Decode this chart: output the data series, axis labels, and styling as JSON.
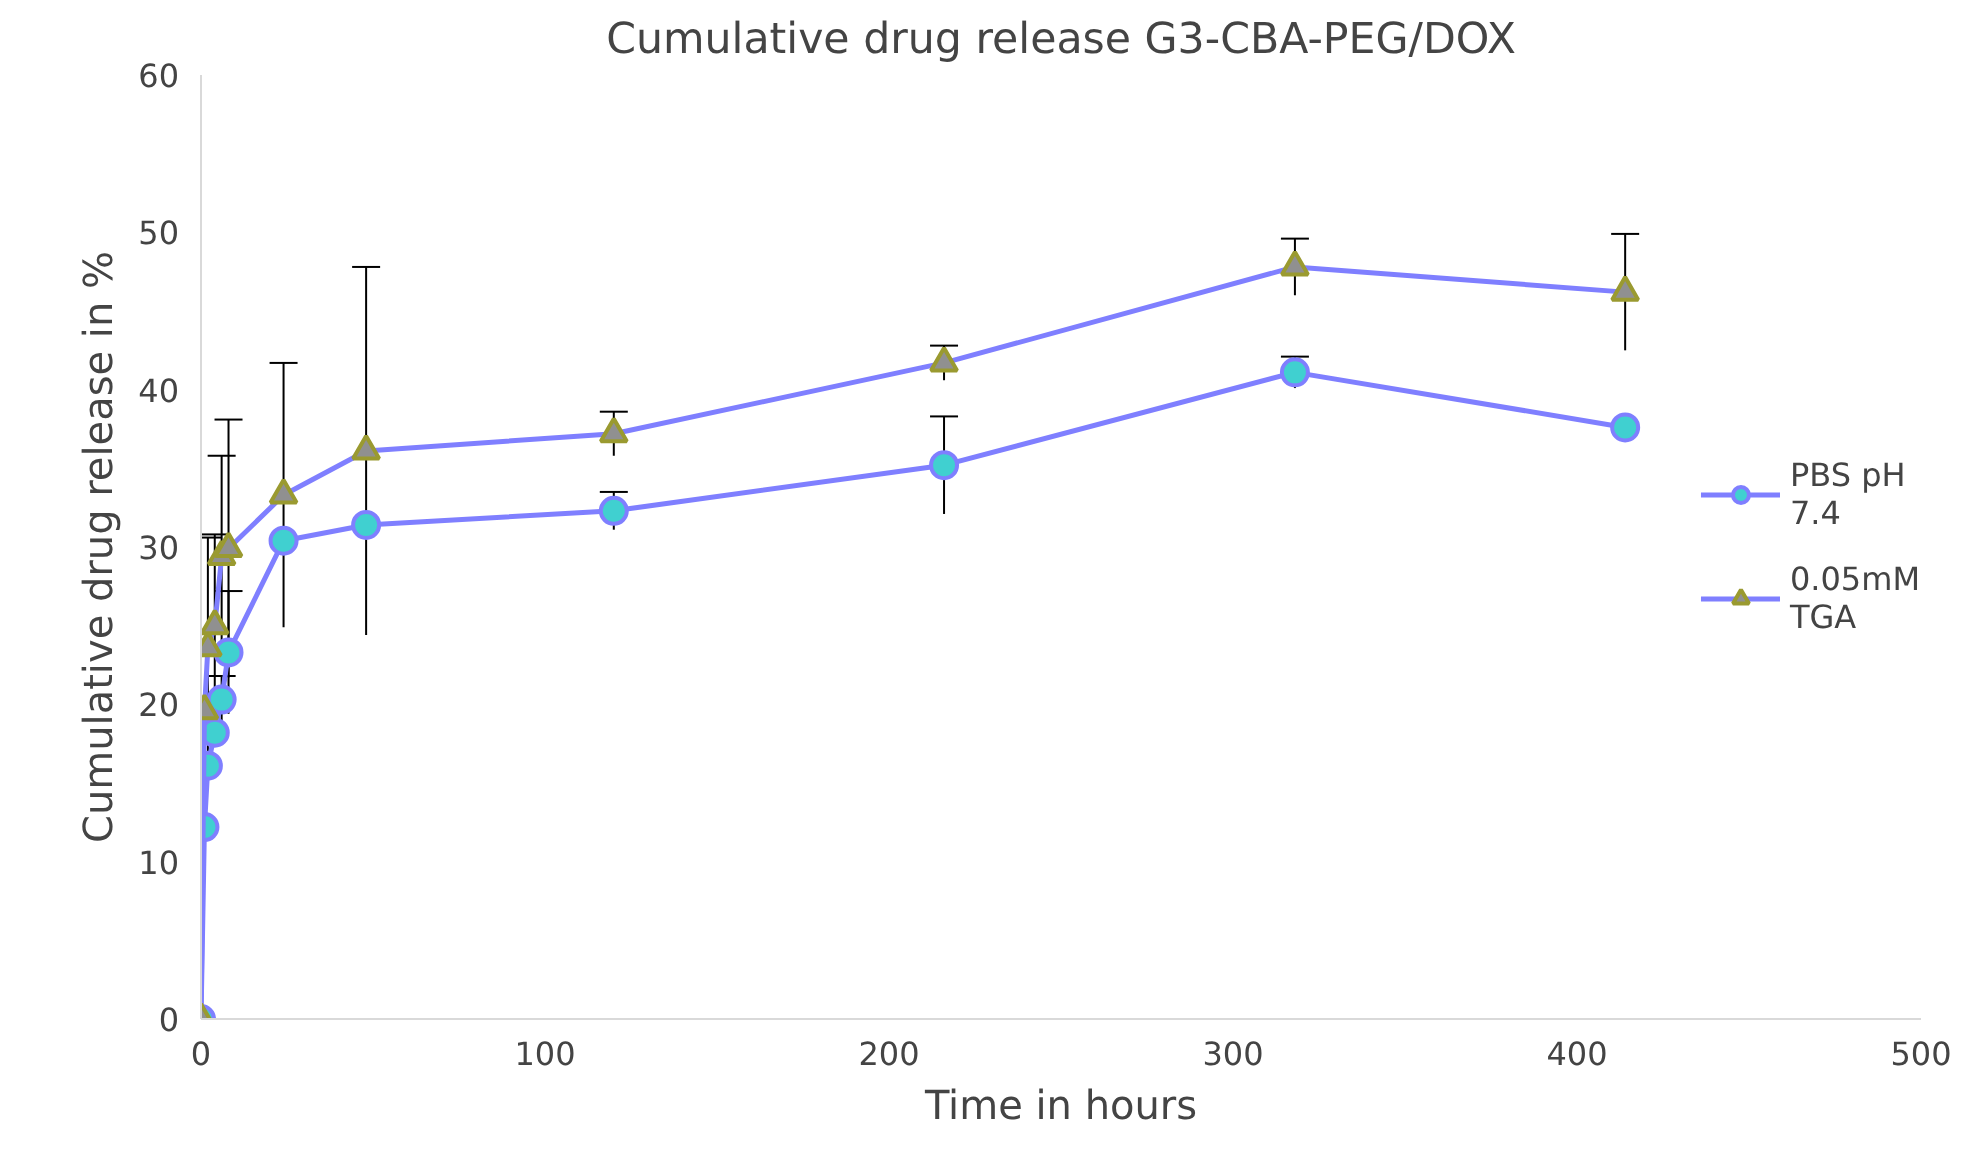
{
  "chart_data": {
    "type": "line",
    "title": "Cumulative drug release G3-CBA-PEG/DOX",
    "xlabel": "Time in hours",
    "ylabel": "Cumulative drug release in %",
    "x": [
      0,
      1,
      2,
      4,
      6,
      8,
      24,
      48,
      120,
      216,
      318,
      414
    ],
    "series": [
      {
        "name": "PBS pH 7.4",
        "color": "#40d0d0",
        "marker": "circle",
        "values": [
          0,
          12.2,
          16.1,
          18.2,
          20.3,
          23.3,
          30.4,
          31.4,
          32.3,
          35.2,
          41.1,
          37.6
        ],
        "errors": [
          null,
          null,
          null,
          null,
          1.5,
          3.9,
          null,
          null,
          1.2,
          3.1,
          1.0,
          null
        ]
      },
      {
        "name": "0.05mM TGA",
        "color": "#909090",
        "marker": "triangle",
        "values": [
          0,
          19.6,
          23.6,
          25.0,
          29.4,
          29.9,
          33.3,
          36.1,
          37.2,
          41.7,
          47.8,
          46.2
        ],
        "errors": [
          null,
          null,
          7.0,
          5.8,
          6.4,
          8.2,
          8.4,
          11.7,
          1.4,
          1.1,
          1.8,
          3.7
        ]
      }
    ],
    "xlim": [
      0,
      500
    ],
    "xticks": [
      0,
      100,
      200,
      300,
      400,
      500
    ],
    "ylim": [
      0,
      60
    ],
    "yticks": [
      0,
      10,
      20,
      30,
      40,
      50,
      60
    ],
    "grid": false,
    "legend": "right"
  }
}
